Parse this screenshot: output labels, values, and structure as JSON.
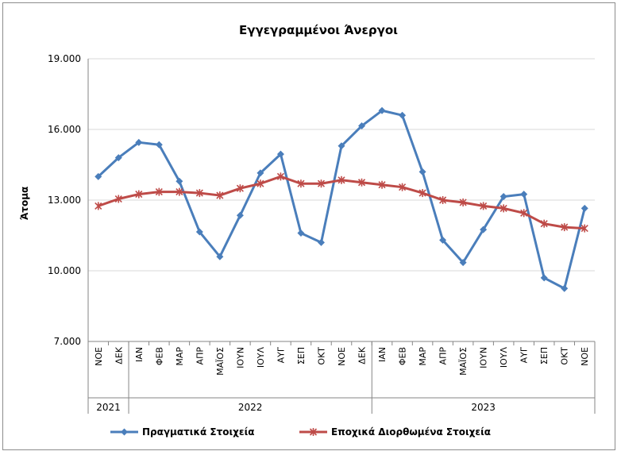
{
  "chart_data": {
    "type": "line",
    "title": "Εγγεγραμμένοι Άνεργοι",
    "ylabel": "Άτομα",
    "xlabel": "",
    "ylim": [
      7000,
      19000
    ],
    "yticks": [
      7000,
      10000,
      13000,
      16000,
      19000
    ],
    "ytick_labels": [
      "7.000",
      "10.000",
      "13.000",
      "16.000",
      "19.000"
    ],
    "grid": true,
    "legend_position": "bottom",
    "categories": [
      "ΝΟΕ",
      "ΔΕΚ",
      "ΙΑΝ",
      "ΦΕΒ",
      "ΜΑΡ",
      "ΑΠΡ",
      "ΜΑΪΟΣ",
      "ΙΟΥΝ",
      "ΙΟΥΛ",
      "ΑΥΓ",
      "ΣΕΠ",
      "ΟΚΤ",
      "ΝΟΕ",
      "ΔΕΚ",
      "ΙΑΝ",
      "ΦΕΒ",
      "ΜΑΡ",
      "ΑΠΡ",
      "ΜΑΪΟΣ",
      "ΙΟΥΝ",
      "ΙΟΥΛ",
      "ΑΥΓ",
      "ΣΕΠ",
      "ΟΚΤ",
      "ΝΟΕ"
    ],
    "year_groups": [
      {
        "label": "2021",
        "start": 0,
        "end": 1
      },
      {
        "label": "2022",
        "start": 2,
        "end": 13
      },
      {
        "label": "2023",
        "start": 14,
        "end": 24
      }
    ],
    "series": [
      {
        "name": "Πραγματικά Στοιχεία",
        "color": "#4a7ebb",
        "marker": "diamond",
        "values": [
          14000,
          14800,
          15450,
          15350,
          13800,
          11650,
          10600,
          12350,
          14150,
          14950,
          11600,
          11200,
          15300,
          16150,
          16800,
          16600,
          14200,
          11300,
          10350,
          11750,
          13150,
          13250,
          9700,
          9250,
          12650
        ]
      },
      {
        "name": "Εποχικά Διορθωμένα Στοιχεία",
        "color": "#be4b48",
        "marker": "star",
        "values": [
          12750,
          13050,
          13250,
          13350,
          13350,
          13300,
          13200,
          13500,
          13700,
          14000,
          13700,
          13700,
          13850,
          13750,
          13650,
          13550,
          13300,
          13000,
          12900,
          12750,
          12650,
          12450,
          12000,
          11850,
          11800
        ]
      }
    ]
  }
}
